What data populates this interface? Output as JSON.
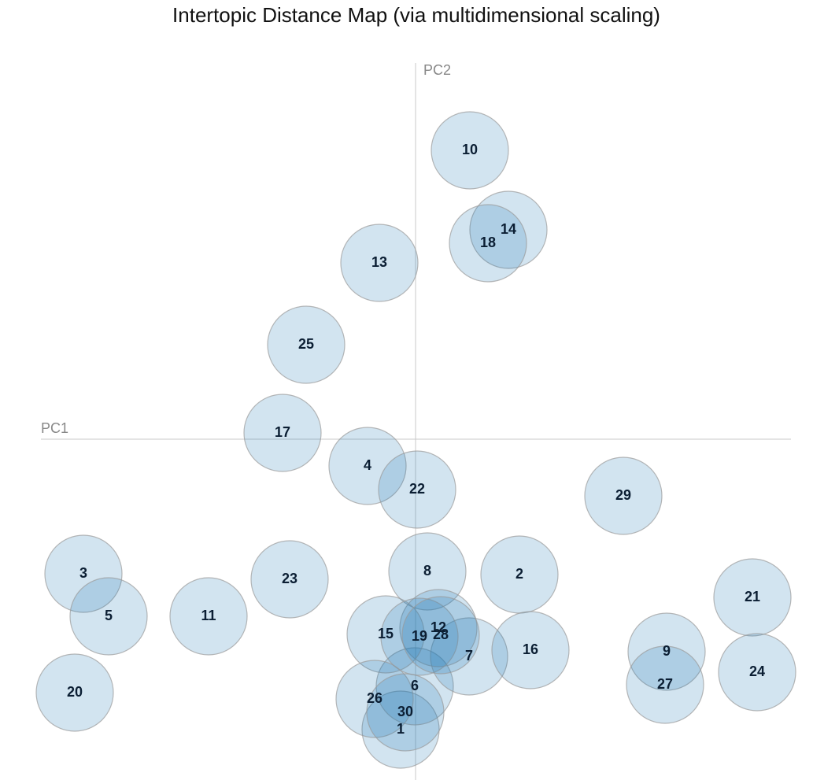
{
  "chart_data": {
    "type": "scatter",
    "title": "Intertopic Distance Map (via multidimensional scaling)",
    "x_label": "PC1",
    "y_label": "PC2",
    "labels": [
      "1",
      "2",
      "3",
      "4",
      "5",
      "6",
      "7",
      "8",
      "9",
      "10",
      "11",
      "12",
      "13",
      "14",
      "15",
      "16",
      "17",
      "18",
      "19",
      "20",
      "21",
      "22",
      "23",
      "24",
      "25",
      "26",
      "27",
      "28",
      "29",
      "30"
    ],
    "x": [
      -0.19,
      1.32,
      -4.22,
      -0.61,
      -3.9,
      -0.01,
      0.68,
      0.15,
      3.19,
      0.69,
      -2.63,
      0.29,
      -0.46,
      1.18,
      -0.38,
      1.46,
      -1.69,
      0.92,
      0.05,
      -4.33,
      4.28,
      0.02,
      -1.6,
      4.34,
      -1.39,
      -0.52,
      3.17,
      0.32,
      2.64,
      -0.13
    ],
    "values": [
      -3.69,
      -1.72,
      -1.71,
      -0.34,
      -2.25,
      -3.14,
      -2.76,
      -1.68,
      -2.7,
      3.67,
      -2.25,
      -2.4,
      2.24,
      2.66,
      -2.48,
      -2.68,
      0.08,
      2.49,
      -2.51,
      -3.22,
      -2.01,
      -0.64,
      -1.78,
      -2.96,
      1.2,
      -3.3,
      -3.12,
      -2.49,
      -0.72,
      -3.47
    ],
    "color": "#1f77b4",
    "xlim": [
      -4.76,
      4.77
    ],
    "ylim": [
      -4.33,
      4.78
    ]
  }
}
